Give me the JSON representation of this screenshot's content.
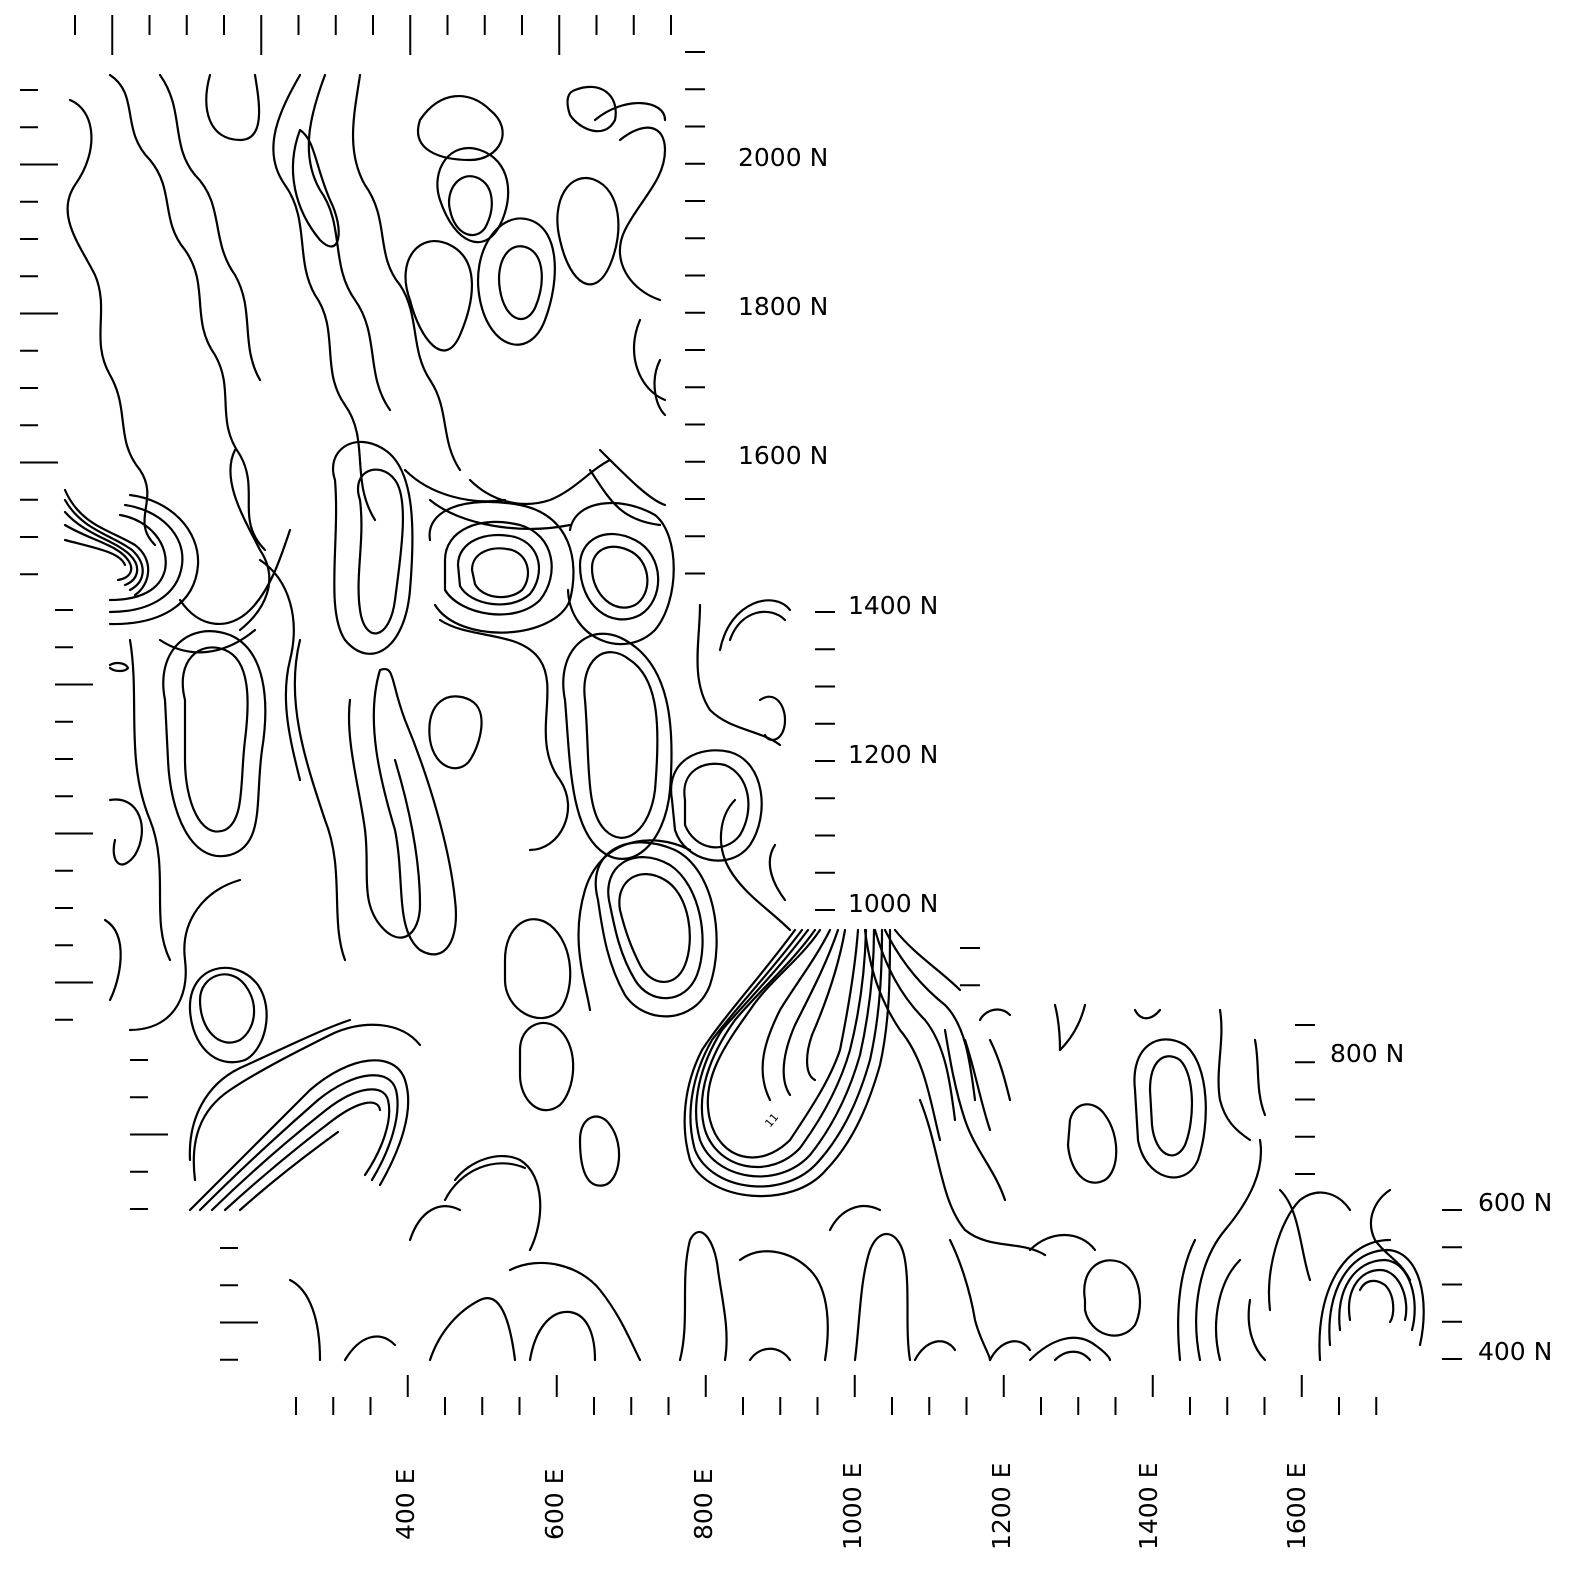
{
  "map": {
    "type": "contour-map",
    "north_labels": [
      "2000 N",
      "1800 N",
      "1600 N",
      "1400 N",
      "1200 N",
      "1000 N",
      "800 N",
      "600 N",
      "400 N"
    ],
    "east_labels": [
      "400 E",
      "600 E",
      "800 E",
      "1000 E",
      "1200 E",
      "1400 E",
      "1600 E"
    ],
    "contour_label": "11",
    "colors": {
      "lines": "#000000",
      "background": "#ffffff"
    }
  }
}
